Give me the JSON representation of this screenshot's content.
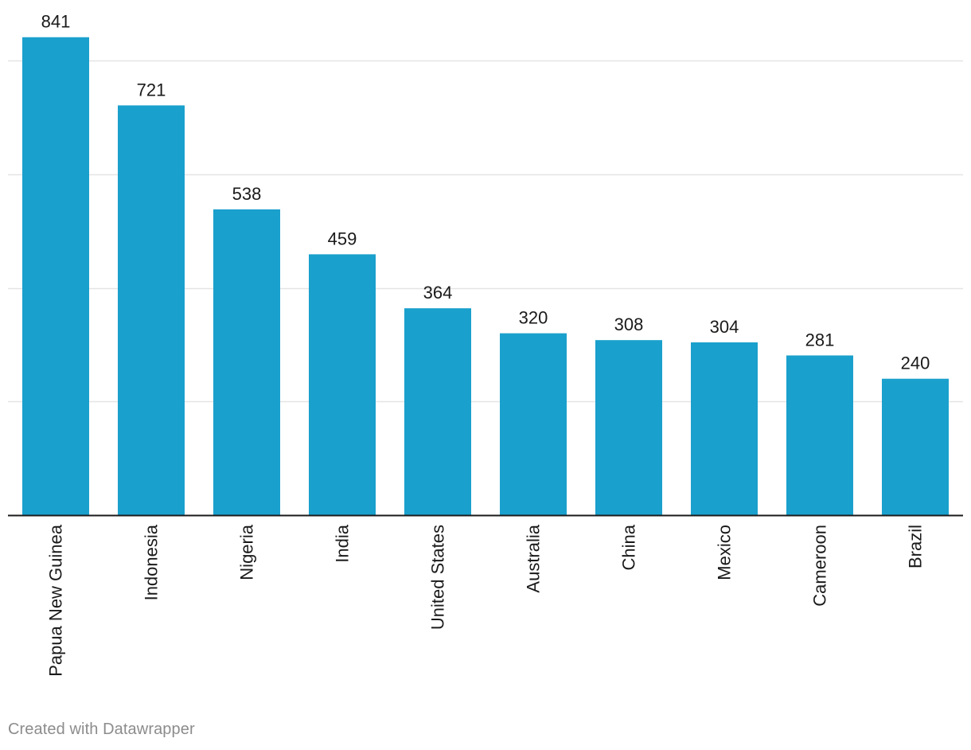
{
  "chart_data": {
    "type": "bar",
    "title": "",
    "xlabel": "",
    "ylabel": "",
    "categories": [
      "Papua New Guinea",
      "Indonesia",
      "Nigeria",
      "India",
      "United States",
      "Australia",
      "China",
      "Mexico",
      "Cameroon",
      "Brazil"
    ],
    "values": [
      841,
      721,
      538,
      459,
      364,
      320,
      308,
      304,
      281,
      240
    ],
    "ylim": [
      0,
      800
    ],
    "gridlines": [
      200,
      400,
      600,
      800
    ],
    "grid": true,
    "legend": "none",
    "bar_color": "#1aa0cc",
    "grid_color": "#e4e4e4",
    "axis_color": "#1a1a1a",
    "label_color": "#1a1a1a"
  },
  "footer": {
    "credit": "Created with Datawrapper"
  }
}
